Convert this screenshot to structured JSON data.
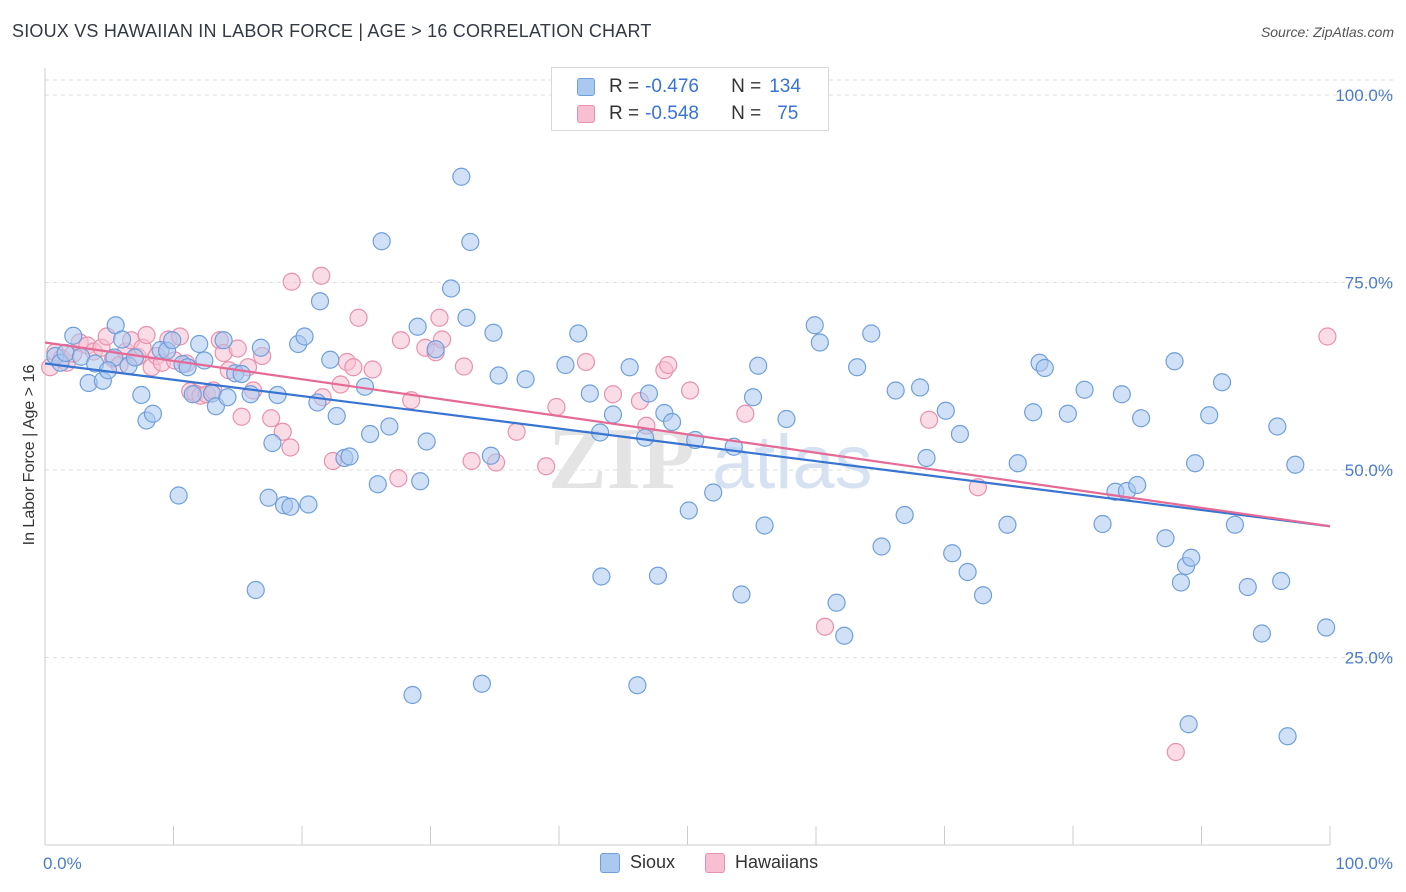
{
  "header": {
    "title": "SIOUX VS HAWAIIAN IN LABOR FORCE | AGE > 16 CORRELATION CHART",
    "source": "Source: ZipAtlas.com"
  },
  "legend": {
    "r_label": "R =",
    "n_label": "N =",
    "rows": [
      {
        "r": "-0.476",
        "n": "134"
      },
      {
        "r": "-0.548",
        "n": "75"
      }
    ]
  },
  "bottom_legend": [
    "Sioux",
    "Hawaiians"
  ],
  "watermark": "ZIPatlas",
  "colors": {
    "sioux_fill": "#aac8f0",
    "sioux_stroke": "#6f9fd9",
    "sioux_line": "#3874d1",
    "hawaiian_fill": "#f6c0d2",
    "hawaiian_stroke": "#e890ad",
    "hawaiian_line": "#e56a96",
    "tick_text": "#4a7cc9"
  },
  "chart_data": {
    "type": "scatter",
    "title": "SIOUX VS HAWAIIAN IN LABOR FORCE | AGE > 16 CORRELATION CHART",
    "xlabel": "",
    "ylabel": "In Labor Force | Age > 16",
    "xlim": [
      0,
      100
    ],
    "ylim": [
      0,
      102
    ],
    "x_tick_labels": [
      "0.0%",
      "100.0%"
    ],
    "y_ticks": [
      25,
      50,
      75,
      100
    ],
    "y_tick_labels": [
      "25.0%",
      "50.0%",
      "75.0%",
      "100.0%"
    ],
    "grid": true,
    "legend_position": "top-center",
    "series": [
      {
        "name": "Sioux",
        "trend": {
          "x": [
            0,
            100
          ],
          "y": [
            64.2,
            42.5
          ]
        },
        "points": [
          [
            0.8,
            65.2
          ],
          [
            1.2,
            64.3
          ],
          [
            1.6,
            65.6
          ],
          [
            2.2,
            67.9
          ],
          [
            2.8,
            65.1
          ],
          [
            3.4,
            61.6
          ],
          [
            3.9,
            64.2
          ],
          [
            4.5,
            61.9
          ],
          [
            5.4,
            65.0
          ],
          [
            5.5,
            69.3
          ],
          [
            6.0,
            67.4
          ],
          [
            6.5,
            63.9
          ],
          [
            7.0,
            65.0
          ],
          [
            7.5,
            60.0
          ],
          [
            7.9,
            56.6
          ],
          [
            8.4,
            57.5
          ],
          [
            9.0,
            66.0
          ],
          [
            9.5,
            65.9
          ],
          [
            9.9,
            67.3
          ],
          [
            10.4,
            46.6
          ],
          [
            10.7,
            64.1
          ],
          [
            11.1,
            63.7
          ],
          [
            11.5,
            60.1
          ],
          [
            12.0,
            66.8
          ],
          [
            12.4,
            64.6
          ],
          [
            13.0,
            60.2
          ],
          [
            13.3,
            58.5
          ],
          [
            13.9,
            67.3
          ],
          [
            14.2,
            59.7
          ],
          [
            14.8,
            62.9
          ],
          [
            15.3,
            62.8
          ],
          [
            16.0,
            60.1
          ],
          [
            16.4,
            34.0
          ],
          [
            16.8,
            66.3
          ],
          [
            17.4,
            46.3
          ],
          [
            17.7,
            53.6
          ],
          [
            18.1,
            60.0
          ],
          [
            18.6,
            45.3
          ],
          [
            19.1,
            45.1
          ],
          [
            19.7,
            66.8
          ],
          [
            20.2,
            67.8
          ],
          [
            20.5,
            45.4
          ],
          [
            21.4,
            72.5
          ],
          [
            21.2,
            59.0
          ],
          [
            22.2,
            64.7
          ],
          [
            22.7,
            57.2
          ],
          [
            23.3,
            51.6
          ],
          [
            23.7,
            51.8
          ],
          [
            24.9,
            61.1
          ],
          [
            25.3,
            54.8
          ],
          [
            25.9,
            48.1
          ],
          [
            26.2,
            80.5
          ],
          [
            26.8,
            55.8
          ],
          [
            28.6,
            20.0
          ],
          [
            29.2,
            48.5
          ],
          [
            29.7,
            53.8
          ],
          [
            29.0,
            69.1
          ],
          [
            30.4,
            66.1
          ],
          [
            31.6,
            74.2
          ],
          [
            32.4,
            89.1
          ],
          [
            32.8,
            70.3
          ],
          [
            33.1,
            80.4
          ],
          [
            34.0,
            21.5
          ],
          [
            34.9,
            68.3
          ],
          [
            35.3,
            62.6
          ],
          [
            34.7,
            51.9
          ],
          [
            37.4,
            62.1
          ],
          [
            40.5,
            64.0
          ],
          [
            41.5,
            68.2
          ],
          [
            42.4,
            60.2
          ],
          [
            43.2,
            55.0
          ],
          [
            43.3,
            35.8
          ],
          [
            44.2,
            57.4
          ],
          [
            45.5,
            63.7
          ],
          [
            46.1,
            21.3
          ],
          [
            46.7,
            54.3
          ],
          [
            47.0,
            60.2
          ],
          [
            47.7,
            35.9
          ],
          [
            48.2,
            57.6
          ],
          [
            48.8,
            56.4
          ],
          [
            50.1,
            44.6
          ],
          [
            50.6,
            54.0
          ],
          [
            52.0,
            47.0
          ],
          [
            53.6,
            53.1
          ],
          [
            54.2,
            33.4
          ],
          [
            55.1,
            59.7
          ],
          [
            55.5,
            63.9
          ],
          [
            56.0,
            42.6
          ],
          [
            57.7,
            56.8
          ],
          [
            59.9,
            69.3
          ],
          [
            60.3,
            67.0
          ],
          [
            61.6,
            32.3
          ],
          [
            62.2,
            27.9
          ],
          [
            63.2,
            63.7
          ],
          [
            64.3,
            68.2
          ],
          [
            65.1,
            39.8
          ],
          [
            66.2,
            60.6
          ],
          [
            66.9,
            44.0
          ],
          [
            68.1,
            61.0
          ],
          [
            68.6,
            51.6
          ],
          [
            70.1,
            57.9
          ],
          [
            70.6,
            38.9
          ],
          [
            71.2,
            54.8
          ],
          [
            71.8,
            36.4
          ],
          [
            73.0,
            33.3
          ],
          [
            74.9,
            42.7
          ],
          [
            75.7,
            50.9
          ],
          [
            76.9,
            57.7
          ],
          [
            77.4,
            64.3
          ],
          [
            77.8,
            63.6
          ],
          [
            79.6,
            57.5
          ],
          [
            80.9,
            60.7
          ],
          [
            82.3,
            42.8
          ],
          [
            83.3,
            47.1
          ],
          [
            83.8,
            60.1
          ],
          [
            84.2,
            47.2
          ],
          [
            85.0,
            48.0
          ],
          [
            85.3,
            56.9
          ],
          [
            87.2,
            40.9
          ],
          [
            87.9,
            64.5
          ],
          [
            88.4,
            35.0
          ],
          [
            88.8,
            37.2
          ],
          [
            89.2,
            38.3
          ],
          [
            89.5,
            50.9
          ],
          [
            89.0,
            16.1
          ],
          [
            90.6,
            57.3
          ],
          [
            91.6,
            61.7
          ],
          [
            92.6,
            42.7
          ],
          [
            93.6,
            34.4
          ],
          [
            94.7,
            28.2
          ],
          [
            95.9,
            55.8
          ],
          [
            96.2,
            35.2
          ],
          [
            96.7,
            14.5
          ],
          [
            97.3,
            50.7
          ],
          [
            99.7,
            29.0
          ],
          [
            4.9,
            63.3
          ]
        ]
      },
      {
        "name": "Hawaiians",
        "trend": {
          "x": [
            0,
            100
          ],
          "y": [
            67.0,
            42.5
          ]
        },
        "points": [
          [
            0.4,
            63.7
          ],
          [
            0.8,
            65.7
          ],
          [
            1.3,
            64.9
          ],
          [
            1.7,
            64.3
          ],
          [
            2.2,
            65.5
          ],
          [
            2.7,
            67.0
          ],
          [
            3.3,
            66.6
          ],
          [
            3.8,
            65.8
          ],
          [
            4.4,
            66.3
          ],
          [
            4.8,
            67.8
          ],
          [
            5.3,
            64.8
          ],
          [
            5.8,
            64.0
          ],
          [
            6.3,
            65.8
          ],
          [
            6.7,
            67.3
          ],
          [
            7.2,
            65.1
          ],
          [
            7.6,
            66.3
          ],
          [
            7.9,
            68.0
          ],
          [
            8.3,
            63.7
          ],
          [
            8.7,
            65.2
          ],
          [
            9.1,
            64.3
          ],
          [
            9.6,
            67.4
          ],
          [
            10.1,
            64.6
          ],
          [
            10.5,
            67.8
          ],
          [
            11.0,
            64.2
          ],
          [
            11.3,
            60.5
          ],
          [
            11.7,
            60.2
          ],
          [
            12.1,
            59.9
          ],
          [
            12.6,
            60.1
          ],
          [
            13.1,
            60.6
          ],
          [
            13.6,
            67.3
          ],
          [
            13.9,
            65.6
          ],
          [
            14.3,
            63.3
          ],
          [
            15.0,
            66.2
          ],
          [
            15.3,
            57.1
          ],
          [
            15.8,
            63.7
          ],
          [
            16.2,
            60.6
          ],
          [
            16.9,
            65.2
          ],
          [
            17.6,
            56.9
          ],
          [
            18.5,
            55.1
          ],
          [
            19.1,
            53.0
          ],
          [
            19.2,
            75.1
          ],
          [
            21.5,
            75.9
          ],
          [
            21.6,
            59.7
          ],
          [
            22.4,
            51.2
          ],
          [
            23.0,
            61.4
          ],
          [
            23.5,
            64.4
          ],
          [
            24.0,
            63.7
          ],
          [
            24.4,
            70.3
          ],
          [
            25.5,
            63.4
          ],
          [
            27.5,
            48.9
          ],
          [
            27.7,
            67.3
          ],
          [
            28.5,
            59.3
          ],
          [
            29.6,
            66.3
          ],
          [
            30.4,
            65.7
          ],
          [
            30.7,
            70.3
          ],
          [
            30.9,
            67.4
          ],
          [
            32.6,
            63.8
          ],
          [
            33.2,
            51.2
          ],
          [
            35.1,
            51.0
          ],
          [
            36.7,
            55.1
          ],
          [
            39.0,
            50.5
          ],
          [
            39.8,
            58.4
          ],
          [
            42.1,
            64.4
          ],
          [
            44.2,
            60.1
          ],
          [
            46.3,
            59.2
          ],
          [
            46.8,
            55.9
          ],
          [
            48.2,
            63.3
          ],
          [
            48.5,
            64.0
          ],
          [
            50.2,
            60.6
          ],
          [
            54.5,
            57.5
          ],
          [
            60.7,
            29.1
          ],
          [
            68.8,
            56.7
          ],
          [
            72.6,
            47.7
          ],
          [
            88.0,
            12.4
          ],
          [
            99.8,
            67.8
          ]
        ]
      }
    ]
  }
}
